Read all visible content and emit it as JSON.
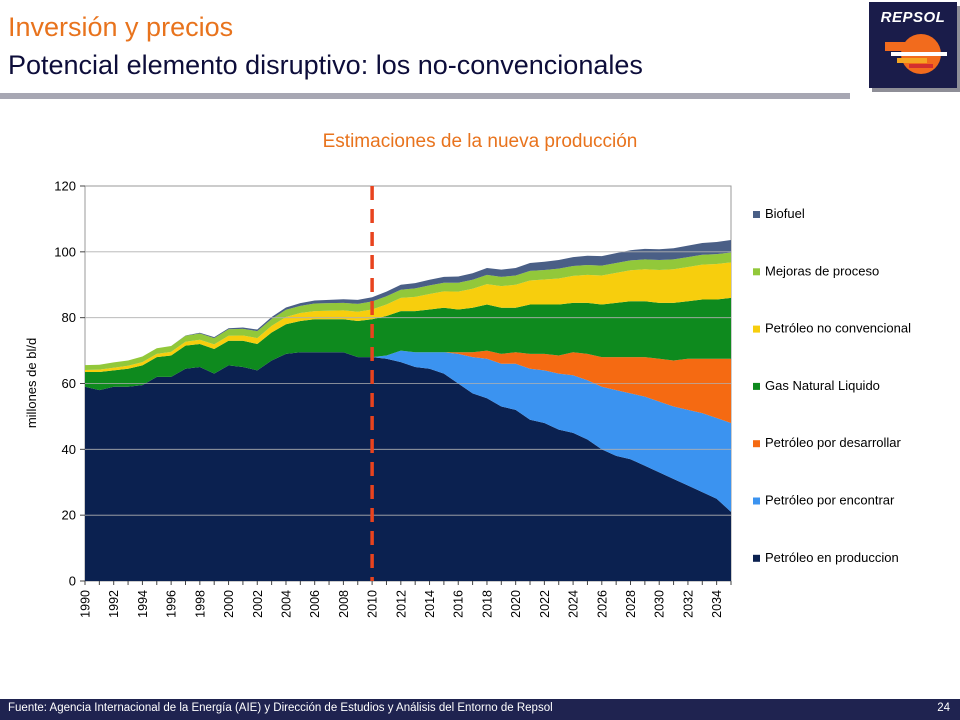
{
  "header": {
    "title": "Inversión y precios",
    "subtitle": "Potencial elemento disruptivo: los no-convencionales",
    "logo_text": "REPSOL"
  },
  "footer": {
    "source": "Fuente: Agencia Internacional de la Energía (AIE) y Dirección de Estudios y Análisis del Entorno de Repsol",
    "page_number": "24"
  },
  "chart_data": {
    "type": "area",
    "stacked": true,
    "title": "Estimaciones de la nueva producción",
    "xlabel": "",
    "ylabel": "millones de bl/d",
    "ylim": [
      0,
      120
    ],
    "yticks": [
      0,
      20,
      40,
      60,
      80,
      100,
      120
    ],
    "xlim": [
      1990,
      2035
    ],
    "xticks": [
      1990,
      1992,
      1994,
      1996,
      1998,
      2000,
      2002,
      2004,
      2006,
      2008,
      2010,
      2012,
      2014,
      2016,
      2018,
      2020,
      2022,
      2024,
      2026,
      2028,
      2030,
      2032,
      2034
    ],
    "legend_position": "right",
    "divider_year": 2010,
    "colors": {
      "petroleo_en_produccion": "#0b2150",
      "petroleo_por_encontrar": "#3b93f0",
      "petroleo_por_desarrollar": "#f56a12",
      "gas_natural_liquido": "#0e8a1e",
      "petroleo_no_convencional": "#f7ce0d",
      "mejoras_de_proceso": "#92c83a",
      "biofuel": "#4a5f86",
      "divider": "#e8431e"
    },
    "x": [
      1990,
      1991,
      1992,
      1993,
      1994,
      1995,
      1996,
      1997,
      1998,
      1999,
      2000,
      2001,
      2002,
      2003,
      2004,
      2005,
      2006,
      2007,
      2008,
      2009,
      2010,
      2011,
      2012,
      2013,
      2014,
      2015,
      2016,
      2017,
      2018,
      2019,
      2020,
      2021,
      2022,
      2023,
      2024,
      2025,
      2026,
      2027,
      2028,
      2029,
      2030,
      2031,
      2032,
      2033,
      2034,
      2035
    ],
    "series": [
      {
        "name": "Petróleo en produccion",
        "key": "petroleo_en_produccion",
        "values": [
          59,
          58,
          59,
          59,
          59.5,
          62,
          62,
          64.5,
          65,
          63,
          65.5,
          65,
          64,
          67,
          69,
          69.5,
          69.5,
          69.5,
          69.5,
          68,
          68,
          67.5,
          66.5,
          65,
          64.5,
          63,
          60,
          57,
          55.5,
          53,
          52,
          49,
          48,
          46,
          45,
          43,
          40,
          38,
          37,
          35,
          33,
          31,
          29,
          27,
          25,
          21
        ]
      },
      {
        "name": "Petróleo por encontrar",
        "key": "petroleo_por_encontrar",
        "values": [
          0,
          0,
          0,
          0,
          0,
          0,
          0,
          0,
          0,
          0,
          0,
          0,
          0,
          0,
          0,
          0,
          0,
          0,
          0,
          0,
          0,
          1,
          3.5,
          4.5,
          5,
          6.5,
          9,
          11,
          12,
          13,
          14,
          15.5,
          16,
          17,
          17.5,
          18,
          19,
          20,
          20,
          21,
          21.5,
          22,
          23,
          24,
          24.5,
          27
        ]
      },
      {
        "name": "Petróleo por desarrollar",
        "key": "petroleo_por_desarrollar",
        "values": [
          0,
          0,
          0,
          0,
          0,
          0,
          0,
          0,
          0,
          0,
          0,
          0,
          0,
          0,
          0,
          0,
          0,
          0,
          0,
          0,
          0,
          0,
          0,
          0,
          0,
          0,
          0.5,
          1.5,
          2.5,
          3,
          3.5,
          4.5,
          5,
          5.5,
          7,
          8,
          9,
          10,
          11,
          12,
          13,
          14,
          15.5,
          16.5,
          18,
          19.5
        ]
      },
      {
        "name": "Gas Natural Liquido",
        "key": "gas_natural_liquido",
        "values": [
          4.5,
          5.5,
          5,
          5.5,
          6,
          6,
          6.5,
          7,
          7,
          7.5,
          7.5,
          8,
          8,
          8.5,
          9,
          9.5,
          10,
          10,
          10,
          11,
          11.5,
          12,
          12,
          12.5,
          13,
          13.5,
          13,
          13.5,
          14,
          14,
          13.5,
          15,
          15,
          15.5,
          15,
          15.5,
          16,
          16.5,
          17,
          17,
          17,
          17.5,
          17.5,
          18,
          18,
          18.5
        ]
      },
      {
        "name": "Petróleo no convencional",
        "key": "petroleo_no_convencional",
        "values": [
          0.6,
          0.7,
          0.8,
          0.9,
          1,
          1,
          1.1,
          1.2,
          1.3,
          1.4,
          1.5,
          1.6,
          1.8,
          2,
          2.2,
          2.4,
          2.5,
          2.6,
          2.7,
          2.8,
          3,
          3.5,
          4,
          4.3,
          4.7,
          5,
          5.4,
          5.8,
          6.2,
          6.6,
          7,
          7.3,
          7.6,
          7.9,
          8.2,
          8.5,
          8.8,
          9.1,
          9.4,
          9.7,
          10,
          10.2,
          10.4,
          10.6,
          10.8,
          10.8
        ]
      },
      {
        "name": "Mejoras de proceso",
        "key": "mejoras_de_proceso",
        "values": [
          1.5,
          1.5,
          1.6,
          1.6,
          1.7,
          1.7,
          1.8,
          1.8,
          1.9,
          1.9,
          2,
          2,
          2.1,
          2.1,
          2.2,
          2.2,
          2.3,
          2.3,
          2.3,
          2.4,
          2.4,
          2.5,
          2.5,
          2.6,
          2.6,
          2.6,
          2.7,
          2.7,
          2.8,
          2.8,
          2.8,
          2.9,
          2.9,
          3,
          3,
          3,
          3,
          3,
          3,
          3,
          3,
          3,
          3,
          3,
          3,
          3
        ]
      },
      {
        "name": "Biofuel",
        "key": "biofuel",
        "values": [
          0,
          0,
          0,
          0,
          0,
          0,
          0,
          0.1,
          0.2,
          0.3,
          0.3,
          0.4,
          0.5,
          0.6,
          0.7,
          0.8,
          0.9,
          1,
          1.1,
          1.2,
          1.3,
          1.4,
          1.5,
          1.6,
          1.7,
          1.8,
          1.9,
          2,
          2.1,
          2.2,
          2.3,
          2.4,
          2.5,
          2.6,
          2.7,
          2.8,
          2.9,
          3,
          3.1,
          3.2,
          3.3,
          3.4,
          3.5,
          3.6,
          3.7,
          3.8
        ]
      }
    ]
  }
}
